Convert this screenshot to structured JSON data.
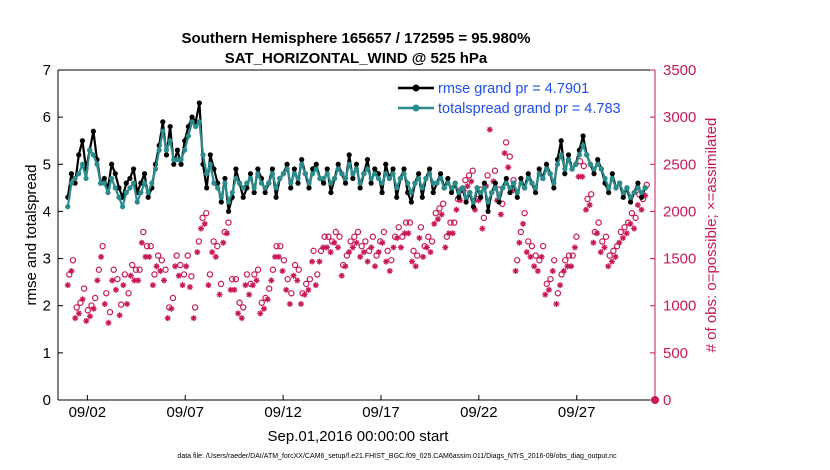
{
  "chart_data": {
    "type": "line",
    "title": "Southern Hemisphere 165657 / 172595 = 95.980%",
    "subtitle": "SAT_HORIZONTAL_WIND @ 525 hPa",
    "xlabel": "Sep.01,2016 00:00:00 start",
    "ylabel": "rmse and totalspread",
    "y2label": "# of obs: o=possible; ×=assimilated",
    "footnote": "data file: /Users/raeder/DAI/ATM_forcXX/CAM6_setup/f.e21.FHIST_BGC.f09_025.CAM6assim.011/Diags_NTrS_2016-09/obs_diag_output.nc",
    "xlim": [
      0.5,
      31.0
    ],
    "ylim": [
      0,
      7
    ],
    "y2lim": [
      0,
      3500
    ],
    "x_ticks": [
      {
        "pos": 2,
        "label": "09/02"
      },
      {
        "pos": 7,
        "label": "09/07"
      },
      {
        "pos": 12,
        "label": "09/12"
      },
      {
        "pos": 17,
        "label": "09/17"
      },
      {
        "pos": 22,
        "label": "09/22"
      },
      {
        "pos": 27,
        "label": "09/27"
      }
    ],
    "y_ticks": [
      "0",
      "1",
      "2",
      "3",
      "4",
      "5",
      "6",
      "7"
    ],
    "y2_ticks": [
      "0",
      "500",
      "1000",
      "1500",
      "2000",
      "2500",
      "3000",
      "3500"
    ],
    "series": [
      {
        "name": "rmse grand pr = 4.7901",
        "color": "#000000",
        "values": [
          4.3,
          4.8,
          4.6,
          5.2,
          5.5,
          4.9,
          5.3,
          5.7,
          5.1,
          4.6,
          4.7,
          4.5,
          5.0,
          4.8,
          4.5,
          4.3,
          4.6,
          4.7,
          4.9,
          4.4,
          4.6,
          4.8,
          4.3,
          4.5,
          5.0,
          5.4,
          5.9,
          5.2,
          5.8,
          5.0,
          5.3,
          5.0,
          5.5,
          5.8,
          6.0,
          5.9,
          6.3,
          5.0,
          4.5,
          5.2,
          4.9,
          4.6,
          4.2,
          4.7,
          4.0,
          4.3,
          4.9,
          4.6,
          4.3,
          4.5,
          4.8,
          4.4,
          4.9,
          4.7,
          4.4,
          4.6,
          4.9,
          4.3,
          4.7,
          4.8,
          5.0,
          4.5,
          4.9,
          4.6,
          5.1,
          4.8,
          4.5,
          4.9,
          5.0,
          4.7,
          4.6,
          4.9,
          4.4,
          4.7,
          5.0,
          4.8,
          4.6,
          5.2,
          4.7,
          5.0,
          4.5,
          4.8,
          5.1,
          4.6,
          4.9,
          4.8,
          4.4,
          5.0,
          4.7,
          4.9,
          4.3,
          4.7,
          4.9,
          4.4,
          4.2,
          4.6,
          4.8,
          4.3,
          4.7,
          4.9,
          4.4,
          4.6,
          4.8,
          4.5,
          4.7,
          4.4,
          4.6,
          4.3,
          4.5,
          4.2,
          4.4,
          4.1,
          4.5,
          4.3,
          4.6,
          4.0,
          4.4,
          4.6,
          4.2,
          4.5,
          4.7,
          4.4,
          4.6,
          4.3,
          4.7,
          4.5,
          4.8,
          4.6,
          4.4,
          4.9,
          4.7,
          5.0,
          4.8,
          4.5,
          5.1,
          5.5,
          4.8,
          5.2,
          4.9,
          5.0,
          5.3,
          5.6,
          5.2,
          5.0,
          4.8,
          5.1,
          4.9,
          4.6,
          4.4,
          4.8,
          4.5,
          4.6,
          4.3,
          4.5,
          4.2,
          4.4,
          4.6,
          4.3,
          4.5
        ],
        "marker": "filled-circle"
      },
      {
        "name": "totalspread grand pr = 4.783",
        "color": "#2a8c8c",
        "values": [
          4.1,
          4.6,
          4.7,
          4.8,
          5.0,
          4.7,
          5.3,
          5.2,
          5.0,
          4.6,
          4.6,
          4.4,
          4.7,
          4.5,
          4.3,
          4.1,
          4.4,
          4.5,
          4.6,
          4.2,
          4.4,
          4.6,
          4.4,
          4.6,
          4.9,
          5.3,
          5.7,
          5.3,
          5.5,
          5.1,
          5.1,
          5.1,
          5.3,
          5.6,
          5.9,
          5.8,
          5.9,
          5.2,
          4.8,
          5.0,
          4.6,
          4.5,
          4.3,
          4.6,
          4.2,
          4.4,
          4.7,
          4.6,
          4.5,
          4.6,
          4.7,
          4.5,
          4.8,
          4.6,
          4.5,
          4.6,
          4.8,
          4.5,
          4.7,
          4.8,
          4.9,
          4.6,
          4.8,
          4.7,
          5.0,
          4.8,
          4.6,
          4.8,
          4.9,
          4.7,
          4.7,
          4.8,
          4.6,
          4.7,
          4.9,
          4.8,
          4.7,
          5.0,
          4.8,
          4.9,
          4.6,
          4.8,
          4.9,
          4.7,
          4.8,
          4.7,
          4.6,
          4.8,
          4.7,
          4.8,
          4.5,
          4.7,
          4.8,
          4.6,
          4.4,
          4.6,
          4.7,
          4.5,
          4.7,
          4.8,
          4.6,
          4.6,
          4.7,
          4.5,
          4.6,
          4.5,
          4.6,
          4.4,
          4.5,
          4.3,
          4.4,
          4.2,
          4.5,
          4.4,
          4.5,
          4.2,
          4.4,
          4.5,
          4.3,
          4.5,
          4.6,
          4.5,
          4.6,
          4.4,
          4.6,
          4.5,
          4.7,
          4.6,
          4.5,
          4.8,
          4.7,
          4.9,
          4.8,
          4.6,
          5.0,
          5.2,
          4.9,
          5.1,
          4.9,
          5.0,
          5.2,
          5.4,
          5.2,
          5.0,
          4.9,
          5.0,
          4.9,
          4.7,
          4.5,
          4.7,
          4.5,
          4.6,
          4.4,
          4.5,
          4.3,
          4.4,
          4.5,
          4.4,
          4.5
        ],
        "marker": "filled-circle"
      }
    ],
    "obs_possible": [
      1300,
      1450,
      950,
      1000,
      1150,
      920,
      970,
      1050,
      1350,
      1600,
      1100,
      900,
      1350,
      1250,
      980,
      1300,
      1100,
      1400,
      1350,
      1350,
      1750,
      1600,
      1600,
      1300,
      1500,
      1450,
      1350,
      950,
      1050,
      1500,
      1400,
      1300,
      1500,
      1280,
      950,
      1650,
      1900,
      1950,
      1300,
      1650,
      1600,
      1200,
      1750,
      1850,
      1250,
      1250,
      1000,
      950,
      1300,
      1200,
      1300,
      1350,
      1000,
      1050,
      1150,
      1350,
      1600,
      1600,
      1450,
      1250,
      1100,
      1400,
      1350,
      1100,
      1200,
      1250,
      1550,
      1300,
      1550,
      1700,
      1700,
      1650,
      1750,
      1700,
      1400,
      1500,
      1650,
      1700,
      1750,
      1600,
      1650,
      1550,
      1700,
      1500,
      1650,
      1750,
      1550,
      1450,
      1700,
      1800,
      1700,
      1850,
      1850,
      1550,
      1500,
      1800,
      1600,
      1700,
      1650,
      1950,
      2000,
      2050,
      1700,
      1850,
      1850,
      2100,
      2200,
      2300,
      2350,
      2400,
      2100,
      2200,
      1900,
      2350,
      3000,
      2400,
      2200,
      2050,
      2700,
      2550,
      2300,
      1450,
      1750,
      1950,
      1650,
      1600,
      1500,
      1450,
      1600,
      1200,
      1250,
      1450,
      1100,
      1300,
      1450,
      1500,
      1500,
      1700,
      2500,
      2450,
      2100,
      2150,
      1750,
      1850,
      1650,
      1700,
      1500,
      1550,
      1600,
      1750,
      1800,
      1850,
      1950,
      1900,
      2150,
      2100,
      2250
    ],
    "obs_assimilated": [
      1250,
      1400,
      900,
      950,
      1100,
      870,
      920,
      1000,
      1300,
      1550,
      1050,
      850,
      1300,
      1200,
      930,
      1250,
      1050,
      1350,
      1300,
      1300,
      1700,
      1550,
      1550,
      1250,
      1450,
      1400,
      1300,
      900,
      1000,
      1450,
      1350,
      1250,
      1450,
      1230,
      900,
      1600,
      1850,
      1900,
      1250,
      1600,
      1550,
      1150,
      1700,
      1800,
      1200,
      1200,
      950,
      900,
      1250,
      1150,
      1250,
      1300,
      950,
      1000,
      1100,
      1300,
      1550,
      1550,
      1400,
      1200,
      1050,
      1350,
      1300,
      1050,
      1150,
      1200,
      1500,
      1250,
      1500,
      1650,
      1650,
      1600,
      1700,
      1650,
      1350,
      1450,
      1600,
      1650,
      1700,
      1550,
      1600,
      1500,
      1650,
      1450,
      1600,
      1700,
      1500,
      1400,
      1650,
      1750,
      1650,
      1800,
      1800,
      1500,
      1450,
      1750,
      1550,
      1650,
      1600,
      1900,
      1950,
      2000,
      1650,
      1800,
      1800,
      2050,
      2150,
      2250,
      2300,
      2350,
      2050,
      2150,
      1850,
      2300,
      2900,
      2350,
      2150,
      2000,
      2650,
      2500,
      2250,
      1400,
      1700,
      1900,
      1600,
      1550,
      1450,
      1400,
      1550,
      1150,
      1200,
      1400,
      1050,
      1250,
      1400,
      1450,
      1450,
      1650,
      2400,
      2400,
      2050,
      2100,
      1700,
      1800,
      1600,
      1650,
      1450,
      1500,
      1550,
      1700,
      1750,
      1800,
      1900,
      1850,
      2100,
      2050,
      2200
    ]
  },
  "legend": {
    "position": "top-right"
  }
}
